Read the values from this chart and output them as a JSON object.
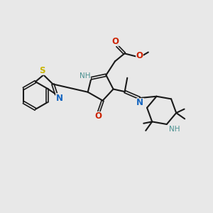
{
  "background_color": "#e8e8e8",
  "bond_color": "#1a1a1a",
  "N_color": "#1565c0",
  "S_color": "#c8b400",
  "O_color": "#cc2200",
  "NH_color": "#4a9090",
  "figsize": [
    3.0,
    3.0
  ],
  "dpi": 100,
  "xlim": [
    0,
    10
  ],
  "ylim": [
    0,
    10
  ]
}
